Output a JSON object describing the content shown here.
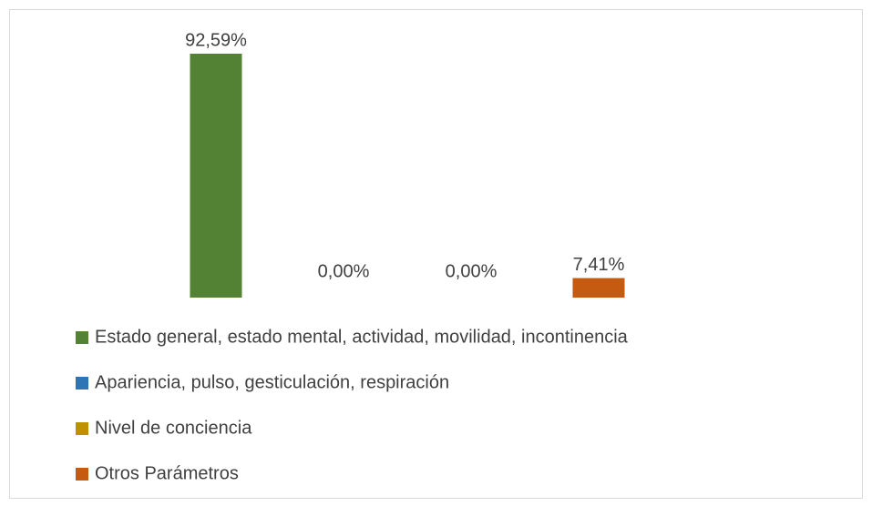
{
  "chart_data": {
    "type": "bar",
    "categories": [
      "Estado general, estado mental, actividad, movilidad, incontinencia",
      "Apariencia, pulso, gesticulación, respiración",
      "Nivel de conciencia",
      "Otros Parámetros"
    ],
    "values": [
      92.59,
      0,
      0,
      7.41
    ],
    "value_labels": [
      "92,59%",
      "0,00%",
      "0,00%",
      "7,41%"
    ],
    "colors": [
      "#548235",
      "#2e75b6",
      "#bf9000",
      "#c55a11"
    ],
    "legend": "bottom"
  }
}
